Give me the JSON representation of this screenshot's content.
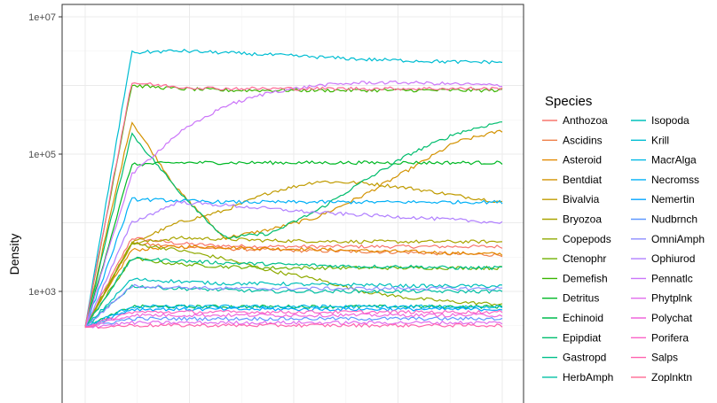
{
  "chart_data": {
    "type": "line",
    "title": "",
    "xlabel": "",
    "ylabel": "Density",
    "y_scale": "log10",
    "ylim": [
      5,
      10000000
    ],
    "y_ticks": [
      {
        "value": 10000000,
        "label": "1e+07"
      },
      {
        "value": 100000,
        "label": "1e+05"
      },
      {
        "value": 1000,
        "label": "1e+03"
      }
    ],
    "x_tick_labels_visible": false,
    "grid": true,
    "legend": {
      "title": "Species",
      "position": "right",
      "columns": 2
    },
    "series": [
      {
        "name": "Anthozoa",
        "color": "#F8766D",
        "values": [
          300,
          6000,
          5000,
          4600,
          4500,
          4500,
          4500,
          4500,
          4500,
          4500
        ]
      },
      {
        "name": "Ascidins",
        "color": "#EF7F49",
        "values": [
          300,
          5000,
          4500,
          4200,
          4000,
          3900,
          3800,
          3700,
          3500,
          3400
        ]
      },
      {
        "name": "Asteroid",
        "color": "#E38900",
        "values": [
          300,
          4000,
          4500,
          4400,
          4200,
          4100,
          3900,
          3800,
          3600,
          3500
        ]
      },
      {
        "name": "Bentdiat",
        "color": "#D39200",
        "values": [
          300,
          300000,
          30000,
          6000,
          8000,
          12000,
          25000,
          60000,
          150000,
          220000
        ]
      },
      {
        "name": "Bivalvia",
        "color": "#C09B00",
        "values": [
          300,
          5000,
          10000,
          15000,
          28000,
          40000,
          38000,
          32000,
          25000,
          20000
        ]
      },
      {
        "name": "Bryozoa",
        "color": "#A9A400",
        "values": [
          300,
          5000,
          6000,
          5800,
          5500,
          5400,
          5300,
          5300,
          5300,
          5300
        ]
      },
      {
        "name": "Copepods",
        "color": "#8FAA00",
        "values": [
          300,
          5000,
          4000,
          3000,
          2000,
          1500,
          1000,
          800,
          700,
          650
        ]
      },
      {
        "name": "Ctenophr",
        "color": "#6FB000",
        "values": [
          300,
          3000,
          2500,
          2300,
          2200,
          2200,
          2200,
          2200,
          2200,
          2200
        ]
      },
      {
        "name": "Demefish",
        "color": "#3AB500",
        "values": [
          300,
          1000000,
          900000,
          850000,
          850000,
          850000,
          850000,
          850000,
          850000,
          850000
        ]
      },
      {
        "name": "Detritus",
        "color": "#00B825",
        "values": [
          300,
          70000,
          75000,
          75000,
          75000,
          75000,
          75000,
          75000,
          75000,
          75000
        ]
      },
      {
        "name": "Echinoid",
        "color": "#00BB4E",
        "values": [
          300,
          600,
          600,
          600,
          600,
          600,
          600,
          600,
          600,
          600
        ]
      },
      {
        "name": "Epipdiat",
        "color": "#00BD6E",
        "values": [
          300,
          200000,
          30000,
          6000,
          7000,
          15000,
          40000,
          100000,
          200000,
          300000
        ]
      },
      {
        "name": "Gastropd",
        "color": "#00BF8A",
        "values": [
          300,
          3000,
          2800,
          2600,
          2500,
          2400,
          2300,
          2300,
          2200,
          2200
        ]
      },
      {
        "name": "HerbAmph",
        "color": "#00C0A4",
        "values": [
          300,
          1200,
          1100,
          1050,
          1000,
          1000,
          1000,
          1000,
          1000,
          1000
        ]
      },
      {
        "name": "Isopoda",
        "color": "#00C0BB",
        "values": [
          300,
          1500,
          1400,
          1300,
          1300,
          1250,
          1250,
          1200,
          1200,
          1200
        ]
      },
      {
        "name": "Krill",
        "color": "#00BDD2",
        "values": [
          300,
          3000000,
          3200000,
          3000000,
          2800000,
          2600000,
          2400000,
          2300000,
          2200000,
          2200000
        ]
      },
      {
        "name": "MacrAlga",
        "color": "#00B8E5",
        "values": [
          300,
          600,
          600,
          600,
          600,
          600,
          600,
          600,
          600,
          600
        ]
      },
      {
        "name": "Necromss",
        "color": "#00B0F6",
        "values": [
          300,
          22000,
          21000,
          20000,
          20000,
          20000,
          20000,
          20000,
          20000,
          20000
        ]
      },
      {
        "name": "Nemertin",
        "color": "#00A5FF",
        "values": [
          300,
          550,
          550,
          550,
          550,
          550,
          550,
          550,
          550,
          550
        ]
      },
      {
        "name": "Nudbrnch",
        "color": "#5E98FF",
        "values": [
          300,
          400,
          400,
          400,
          400,
          400,
          400,
          400,
          400,
          400
        ]
      },
      {
        "name": "OmniAmph",
        "color": "#8C8CFF",
        "values": [
          300,
          1200,
          1150,
          1100,
          1100,
          1100,
          1100,
          1100,
          1100,
          1100
        ]
      },
      {
        "name": "Ophiurod",
        "color": "#B07FFF",
        "values": [
          300,
          10000,
          20000,
          18000,
          16000,
          14000,
          13000,
          12000,
          11000,
          10000
        ]
      },
      {
        "name": "Pennatlc",
        "color": "#CB76F9",
        "values": [
          300,
          50000,
          200000,
          500000,
          800000,
          1000000,
          1100000,
          1100000,
          1050000,
          1000000
        ]
      },
      {
        "name": "Phytplnk",
        "color": "#E06EED",
        "values": [
          300,
          350,
          350,
          350,
          350,
          350,
          350,
          350,
          350,
          350
        ]
      },
      {
        "name": "Polychat",
        "color": "#EF67DC",
        "values": [
          300,
          450,
          450,
          450,
          450,
          450,
          450,
          450,
          450,
          450
        ]
      },
      {
        "name": "Porifera",
        "color": "#FA62C7",
        "values": [
          300,
          500,
          500,
          500,
          500,
          500,
          500,
          500,
          500,
          500
        ]
      },
      {
        "name": "Salps",
        "color": "#FF62AE",
        "values": [
          300,
          320,
          320,
          320,
          320,
          320,
          320,
          320,
          320,
          320
        ]
      },
      {
        "name": "Zoplnktn",
        "color": "#FF6892",
        "values": [
          300,
          1100000,
          950000,
          900000,
          900000,
          900000,
          900000,
          900000,
          900000,
          900000
        ]
      }
    ]
  }
}
